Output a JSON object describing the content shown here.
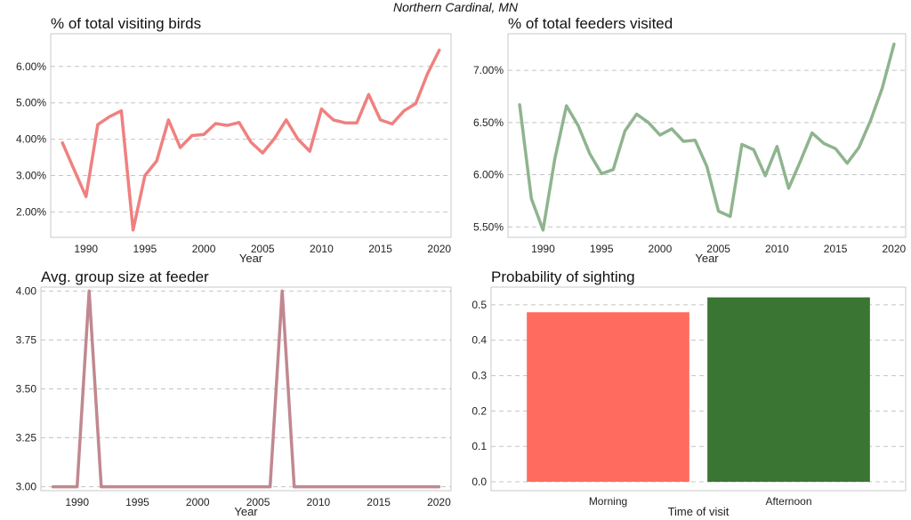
{
  "suptitle": "Northern Cardinal, MN",
  "chart_data": [
    {
      "type": "line",
      "title": "% of total visiting birds",
      "xlabel": "Year",
      "ylabel": "",
      "xlim": [
        1987,
        2021
      ],
      "ylim": [
        1.3,
        6.9
      ],
      "xticks": [
        1990,
        1995,
        2000,
        2005,
        2010,
        2015,
        2020
      ],
      "yticks": [
        2,
        3,
        4,
        5,
        6
      ],
      "ytick_format": "percent2",
      "grid": "y-dashed",
      "color": "#f08080",
      "x": [
        1988,
        1989,
        1990,
        1991,
        1992,
        1993,
        1994,
        1995,
        1996,
        1997,
        1998,
        1999,
        2000,
        2001,
        2002,
        2003,
        2004,
        2005,
        2006,
        2007,
        2008,
        2009,
        2010,
        2011,
        2012,
        2013,
        2014,
        2015,
        2016,
        2017,
        2018,
        2019,
        2020
      ],
      "values": [
        3.9,
        3.15,
        2.42,
        4.4,
        4.62,
        4.78,
        1.5,
        3.0,
        3.4,
        4.53,
        3.77,
        4.1,
        4.13,
        4.43,
        4.38,
        4.46,
        3.92,
        3.62,
        4.02,
        4.53,
        4.0,
        3.67,
        4.83,
        4.53,
        4.45,
        4.45,
        5.23,
        4.53,
        4.42,
        4.78,
        4.98,
        5.8,
        6.45
      ]
    },
    {
      "type": "line",
      "title": "% of total feeders visited",
      "xlabel": "Year",
      "ylabel": "",
      "xlim": [
        1987,
        2021
      ],
      "ylim": [
        5.4,
        7.35
      ],
      "xticks": [
        1990,
        1995,
        2000,
        2005,
        2010,
        2015,
        2020
      ],
      "yticks": [
        5.5,
        6.0,
        6.5,
        7.0
      ],
      "ytick_format": "percent2",
      "grid": "y-dashed",
      "color": "#8fb48f",
      "x": [
        1988,
        1989,
        1990,
        1991,
        1992,
        1993,
        1994,
        1995,
        1996,
        1997,
        1998,
        1999,
        2000,
        2001,
        2002,
        2003,
        2004,
        2005,
        2006,
        2007,
        2008,
        2009,
        2010,
        2011,
        2012,
        2013,
        2014,
        2015,
        2016,
        2017,
        2018,
        2019,
        2020
      ],
      "values": [
        6.67,
        5.77,
        5.47,
        6.15,
        6.66,
        6.47,
        6.2,
        6.01,
        6.05,
        6.42,
        6.58,
        6.5,
        6.38,
        6.44,
        6.32,
        6.33,
        6.08,
        5.65,
        5.6,
        6.29,
        6.24,
        5.99,
        6.27,
        5.87,
        6.13,
        6.4,
        6.3,
        6.25,
        6.11,
        6.26,
        6.52,
        6.83,
        7.25
      ]
    },
    {
      "type": "line",
      "title": "Avg. group size at feeder",
      "xlabel": "Year",
      "ylabel": "",
      "xlim": [
        1987,
        2021
      ],
      "ylim": [
        2.98,
        4.02
      ],
      "xticks": [
        1990,
        1995,
        2000,
        2005,
        2010,
        2015,
        2020
      ],
      "yticks": [
        3.0,
        3.25,
        3.5,
        3.75,
        4.0
      ],
      "ytick_format": "fixed2",
      "grid": "y-dashed",
      "color": "#c08890",
      "x": [
        1988,
        1989,
        1990,
        1991,
        1992,
        1993,
        1994,
        1995,
        1996,
        1997,
        1998,
        1999,
        2000,
        2001,
        2002,
        2003,
        2004,
        2005,
        2006,
        2007,
        2008,
        2009,
        2010,
        2011,
        2012,
        2013,
        2014,
        2015,
        2016,
        2017,
        2018,
        2019,
        2020
      ],
      "values": [
        3,
        3,
        3,
        4,
        3,
        3,
        3,
        3,
        3,
        3,
        3,
        3,
        3,
        3,
        3,
        3,
        3,
        3,
        3,
        4,
        3,
        3,
        3,
        3,
        3,
        3,
        3,
        3,
        3,
        3,
        3,
        3,
        3
      ]
    },
    {
      "type": "bar",
      "title": "Probability of sighting",
      "xlabel": "Time of visit",
      "ylabel": "",
      "ylim": [
        -0.025,
        0.55
      ],
      "yticks": [
        0.0,
        0.1,
        0.2,
        0.3,
        0.4,
        0.5
      ],
      "ytick_format": "fixed1",
      "grid": "y-dashed",
      "categories": [
        "Morning",
        "Afternoon"
      ],
      "values": [
        0.479,
        0.521
      ],
      "colors": [
        "#ff6b5e",
        "#3a7533"
      ]
    }
  ]
}
